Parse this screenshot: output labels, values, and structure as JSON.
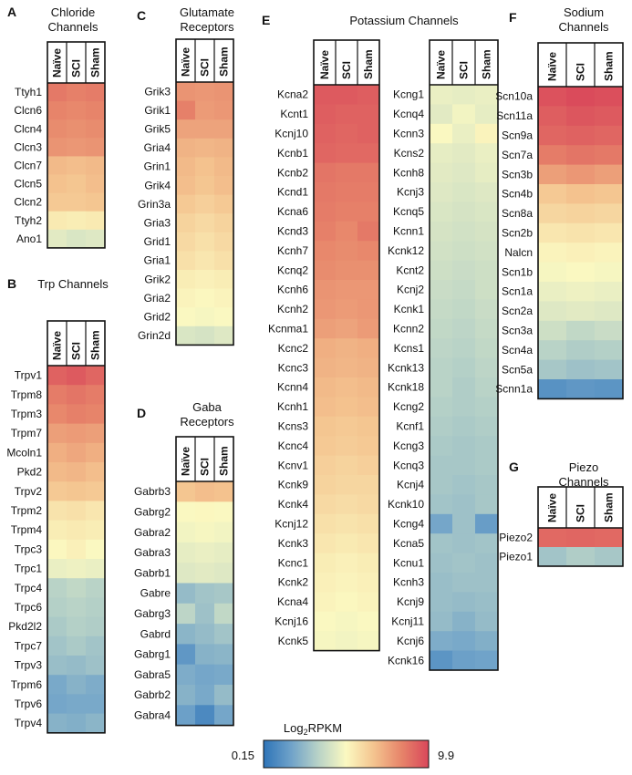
{
  "chart_data": [
    {
      "type": "heatmap",
      "panel": "A",
      "title_lines": [
        "Chloride",
        "Channels"
      ],
      "columns": [
        "Naïve",
        "SCI",
        "Sham"
      ],
      "rows": [
        "Ttyh1",
        "Clcn6",
        "Clcn4",
        "Clcn3",
        "Clcn7",
        "Clcn5",
        "Clcn2",
        "Ttyh2",
        "Ano1"
      ],
      "values": [
        [
          8.6,
          8.4,
          8.5
        ],
        [
          8.3,
          8.2,
          8.3
        ],
        [
          8.1,
          8.0,
          8.1
        ],
        [
          7.9,
          7.8,
          7.9
        ],
        [
          6.9,
          6.8,
          6.9
        ],
        [
          6.7,
          6.6,
          6.8
        ],
        [
          6.5,
          6.5,
          6.6
        ],
        [
          5.5,
          5.4,
          5.5
        ],
        [
          4.4,
          4.2,
          4.3
        ]
      ]
    },
    {
      "type": "heatmap",
      "panel": "B",
      "title_lines": [
        "Trp Channels"
      ],
      "columns": [
        "Naïve",
        "SCI",
        "Sham"
      ],
      "rows": [
        "Trpv1",
        "Trpm8",
        "Trpm3",
        "Trpm7",
        "Mcoln1",
        "Pkd2",
        "Trpv2",
        "Trpm2",
        "Trpm4",
        "Trpc3",
        "Trpc1",
        "Trpc4",
        "Trpc6",
        "Pkd2l2",
        "Trpc7",
        "Trpv3",
        "Trpm6",
        "Trpv6",
        "Trpv4"
      ],
      "values": [
        [
          9.2,
          9.4,
          9.1
        ],
        [
          8.5,
          8.7,
          8.5
        ],
        [
          8.2,
          8.4,
          8.3
        ],
        [
          7.6,
          7.7,
          7.6
        ],
        [
          7.2,
          7.4,
          7.2
        ],
        [
          6.9,
          7.0,
          6.8
        ],
        [
          6.5,
          6.6,
          6.5
        ],
        [
          5.7,
          5.8,
          5.6
        ],
        [
          5.4,
          5.5,
          5.4
        ],
        [
          5.1,
          5.3,
          5.0
        ],
        [
          4.6,
          4.7,
          4.6
        ],
        [
          3.4,
          3.6,
          3.4
        ],
        [
          3.3,
          3.4,
          3.3
        ],
        [
          3.1,
          3.3,
          3.2
        ],
        [
          2.9,
          3.1,
          2.9
        ],
        [
          2.7,
          2.6,
          2.8
        ],
        [
          2.0,
          2.3,
          2.1
        ],
        [
          1.9,
          2.0,
          2.0
        ],
        [
          2.3,
          2.2,
          2.4
        ]
      ]
    },
    {
      "type": "heatmap",
      "panel": "C",
      "title_lines": [
        "Glutamate",
        "Receptors"
      ],
      "columns": [
        "Naïve",
        "SCI",
        "Sham"
      ],
      "rows": [
        "Grik3",
        "Grik1",
        "Grik5",
        "Gria4",
        "Grin1",
        "Grik4",
        "Grin3a",
        "Gria3",
        "Grid1",
        "Gria1",
        "Grik2",
        "Gria2",
        "Grid2",
        "Grin2d"
      ],
      "values": [
        [
          7.9,
          7.8,
          7.9
        ],
        [
          8.4,
          7.7,
          7.8
        ],
        [
          7.5,
          7.5,
          7.5
        ],
        [
          7.1,
          7.0,
          7.1
        ],
        [
          6.9,
          6.7,
          6.9
        ],
        [
          6.8,
          6.6,
          6.8
        ],
        [
          6.5,
          6.3,
          6.5
        ],
        [
          6.2,
          6.0,
          6.2
        ],
        [
          6.0,
          5.8,
          6.0
        ],
        [
          5.8,
          5.6,
          5.8
        ],
        [
          5.4,
          5.3,
          5.4
        ],
        [
          5.2,
          5.1,
          5.2
        ],
        [
          5.0,
          4.9,
          5.0
        ],
        [
          4.2,
          4.1,
          4.3
        ]
      ]
    },
    {
      "type": "heatmap",
      "panel": "D",
      "title_lines": [
        "Gaba",
        "Receptors"
      ],
      "columns": [
        "Naïve",
        "SCI",
        "Sham"
      ],
      "rows": [
        "Gabrb3",
        "Gabrg2",
        "Gabra2",
        "Gabra3",
        "Gabrb1",
        "Gabre",
        "Gabrg3",
        "Gabrd",
        "Gabrg1",
        "Gabra5",
        "Gabrb2",
        "Gabra4"
      ],
      "values": [
        [
          6.6,
          6.8,
          6.7
        ],
        [
          5.0,
          5.1,
          5.0
        ],
        [
          4.8,
          4.9,
          4.8
        ],
        [
          4.5,
          4.6,
          4.5
        ],
        [
          4.3,
          4.4,
          4.3
        ],
        [
          2.6,
          2.9,
          3.0
        ],
        [
          3.5,
          2.8,
          3.6
        ],
        [
          2.4,
          2.6,
          2.9
        ],
        [
          1.4,
          2.3,
          2.4
        ],
        [
          2.1,
          1.9,
          2.0
        ],
        [
          2.3,
          2.0,
          2.6
        ],
        [
          1.7,
          0.9,
          1.9
        ]
      ]
    },
    {
      "type": "heatmap",
      "panel": "E",
      "title_lines": [
        "Potassium Channels"
      ],
      "columns": [
        "Naïve",
        "SCI",
        "Sham"
      ],
      "rows": [
        "Kcna2",
        "Kcnt1",
        "Kcnj10",
        "Kcnb1",
        "Kcnb2",
        "Kcnd1",
        "Kcna6",
        "Kcnd3",
        "Kcnh7",
        "Kcnq2",
        "Kcnh6",
        "Kcnh2",
        "Kcnma1",
        "Kcnc2",
        "Kcnc3",
        "Kcnn4",
        "Kcnh1",
        "Kcns3",
        "Kcnc4",
        "Kcnv1",
        "Kcnk9",
        "Kcnk4",
        "Kcnj12",
        "Kcnk3",
        "Kcnc1",
        "Kcnk2",
        "Kcna4",
        "Kcnj16",
        "Kcnk5"
      ],
      "values": [
        [
          9.4,
          9.4,
          9.3
        ],
        [
          9.3,
          9.2,
          9.2
        ],
        [
          9.2,
          9.1,
          9.2
        ],
        [
          9.1,
          9.0,
          9.0
        ],
        [
          8.7,
          8.6,
          8.6
        ],
        [
          8.6,
          8.5,
          8.5
        ],
        [
          8.5,
          8.4,
          8.4
        ],
        [
          8.4,
          8.2,
          8.6
        ],
        [
          8.2,
          8.1,
          8.2
        ],
        [
          8.1,
          8.0,
          8.0
        ],
        [
          7.9,
          7.8,
          7.8
        ],
        [
          7.8,
          7.7,
          7.8
        ],
        [
          7.6,
          7.5,
          7.7
        ],
        [
          7.2,
          7.1,
          7.2
        ],
        [
          7.1,
          7.0,
          7.1
        ],
        [
          6.9,
          6.8,
          6.9
        ],
        [
          6.8,
          6.7,
          6.8
        ],
        [
          6.6,
          6.5,
          6.6
        ],
        [
          6.5,
          6.4,
          6.5
        ],
        [
          6.3,
          6.2,
          6.3
        ],
        [
          6.2,
          6.1,
          6.1
        ],
        [
          6.0,
          5.9,
          6.0
        ],
        [
          5.8,
          5.7,
          5.8
        ],
        [
          5.6,
          5.5,
          5.6
        ],
        [
          5.4,
          5.3,
          5.4
        ],
        [
          5.3,
          5.2,
          5.3
        ],
        [
          5.2,
          5.1,
          5.2
        ],
        [
          5.0,
          4.9,
          5.0
        ],
        [
          4.9,
          4.8,
          4.9
        ]
      ]
    },
    {
      "type": "heatmap",
      "panel": "E2",
      "title_lines": [],
      "columns": [
        "Naïve",
        "SCI",
        "Sham"
      ],
      "rows": [
        "Kcng1",
        "Kcnq4",
        "Kcnn3",
        "Kcns2",
        "Kcnh8",
        "Kcnj3",
        "Kcnq5",
        "Kcnn1",
        "Kcnk12",
        "Kcnt2",
        "Kcnj2",
        "Kcnk1",
        "Kcnn2",
        "Kcns1",
        "Kcnk13",
        "Kcnk18",
        "Kcng2",
        "Kcnf1",
        "Kcng3",
        "Kcnq3",
        "Kcnj4",
        "Kcnk10",
        "Kcng4",
        "Kcna5",
        "Kcnu1",
        "Kcnh3",
        "Kcnj9",
        "Kcnj11",
        "Kcnj6",
        "Kcnk16"
      ],
      "values": [
        [
          4.6,
          4.5,
          4.6
        ],
        [
          4.4,
          4.8,
          4.5
        ],
        [
          5.0,
          4.6,
          5.2
        ],
        [
          4.5,
          4.4,
          4.6
        ],
        [
          4.4,
          4.3,
          4.5
        ],
        [
          4.3,
          4.2,
          4.3
        ],
        [
          4.2,
          4.1,
          4.2
        ],
        [
          4.1,
          4.0,
          4.1
        ],
        [
          4.0,
          3.9,
          4.0
        ],
        [
          3.9,
          3.8,
          3.9
        ],
        [
          3.8,
          3.7,
          3.9
        ],
        [
          3.7,
          3.6,
          3.8
        ],
        [
          3.6,
          3.5,
          3.7
        ],
        [
          3.5,
          3.4,
          3.6
        ],
        [
          3.4,
          3.3,
          3.5
        ],
        [
          3.4,
          3.2,
          3.4
        ],
        [
          3.3,
          3.2,
          3.3
        ],
        [
          3.2,
          3.1,
          3.2
        ],
        [
          3.1,
          3.0,
          3.1
        ],
        [
          3.0,
          3.0,
          3.1
        ],
        [
          3.0,
          2.9,
          3.0
        ],
        [
          2.9,
          2.8,
          3.0
        ],
        [
          1.9,
          2.8,
          1.6
        ],
        [
          2.9,
          2.8,
          2.9
        ],
        [
          2.8,
          2.9,
          2.8
        ],
        [
          2.7,
          2.8,
          2.8
        ],
        [
          2.7,
          2.6,
          2.7
        ],
        [
          2.6,
          2.3,
          2.6
        ],
        [
          2.1,
          2.0,
          2.2
        ],
        [
          1.3,
          1.7,
          1.8
        ]
      ]
    },
    {
      "type": "heatmap",
      "panel": "F",
      "title_lines": [
        "Sodium",
        "Channels"
      ],
      "columns": [
        "Naïve",
        "SCI",
        "Sham"
      ],
      "rows": [
        "Scn10a",
        "Scn11a",
        "Scn9a",
        "Scn7a",
        "Scn3b",
        "Scn4b",
        "Scn8a",
        "Scn2b",
        "Nalcn",
        "Scn1b",
        "Scn1a",
        "Scn2a",
        "Scn3a",
        "Scn4a",
        "Scn5a",
        "Scnn1a"
      ],
      "values": [
        [
          9.6,
          9.8,
          9.7
        ],
        [
          9.3,
          9.5,
          9.4
        ],
        [
          9.1,
          9.2,
          9.1
        ],
        [
          8.5,
          8.7,
          8.6
        ],
        [
          7.6,
          7.8,
          7.6
        ],
        [
          6.5,
          6.7,
          6.6
        ],
        [
          6.1,
          6.2,
          6.1
        ],
        [
          5.6,
          5.7,
          5.6
        ],
        [
          5.2,
          5.3,
          5.2
        ],
        [
          4.9,
          5.0,
          4.9
        ],
        [
          4.6,
          4.7,
          4.6
        ],
        [
          4.3,
          4.4,
          4.3
        ],
        [
          3.9,
          3.6,
          3.8
        ],
        [
          3.4,
          3.2,
          3.3
        ],
        [
          3.0,
          2.8,
          2.9
        ],
        [
          1.2,
          1.4,
          1.3
        ]
      ]
    },
    {
      "type": "heatmap",
      "panel": "G",
      "title_lines": [
        "Piezo",
        "Channels"
      ],
      "columns": [
        "Naïve",
        "SCI",
        "Sham"
      ],
      "rows": [
        "Piezo2",
        "Piezo1"
      ],
      "values": [
        [
          9.0,
          9.1,
          9.0
        ],
        [
          2.9,
          3.2,
          3.0
        ]
      ]
    }
  ],
  "colorbar": {
    "title_main": "Log",
    "title_sub": "2",
    "title_rest": "RPKM",
    "min_label": "0.15",
    "max_label": "9.9",
    "min": 0.15,
    "max": 9.9,
    "stops": [
      "#2e74b8",
      "#6fa2c9",
      "#b9d3c7",
      "#fbf9c1",
      "#f4c48f",
      "#e7856a",
      "#d9475a"
    ]
  }
}
